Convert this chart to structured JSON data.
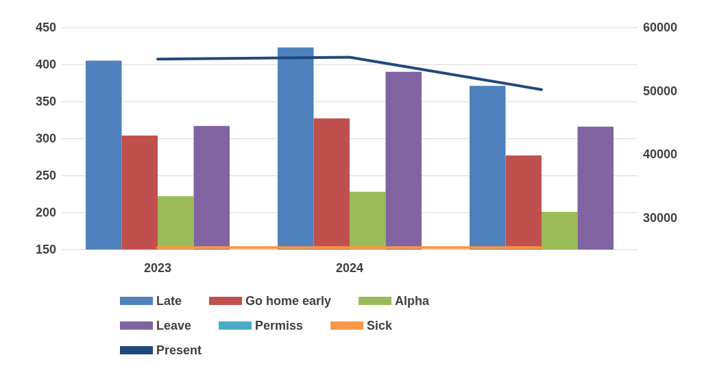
{
  "chart_data": {
    "type": "bar",
    "categories": [
      "2023",
      "2024",
      null
    ],
    "series": [
      {
        "name": "Late",
        "color": "#4f81bd",
        "values": [
          405,
          423,
          371
        ]
      },
      {
        "name": "Go home early",
        "color": "#c0504d",
        "values": [
          304,
          327,
          277
        ]
      },
      {
        "name": "Alpha",
        "color": "#9bbb59",
        "values": [
          222,
          228,
          201
        ]
      },
      {
        "name": "Leave",
        "color": "#8064a2",
        "values": [
          317,
          390,
          316
        ]
      },
      {
        "name": "Permiss",
        "type": "line",
        "axis": "y2",
        "color": "#4bacc6",
        "values": [
          null,
          null,
          null
        ]
      },
      {
        "name": "Sick",
        "type": "line",
        "axis": "y2",
        "color": "#f79646",
        "values": [
          25300,
          25300,
          25300
        ]
      },
      {
        "name": "Present",
        "type": "line",
        "axis": "y2",
        "color": "#1f497d",
        "values": [
          55000,
          55300,
          50200
        ]
      }
    ],
    "ylim": [
      150,
      450
    ],
    "yticks": [
      150,
      200,
      250,
      300,
      350,
      400,
      450
    ],
    "y2lim": [
      25000,
      60000
    ],
    "y2ticks": [
      30000,
      40000,
      50000,
      60000
    ],
    "grid": "y",
    "legend": "bottom",
    "marker": "none"
  }
}
